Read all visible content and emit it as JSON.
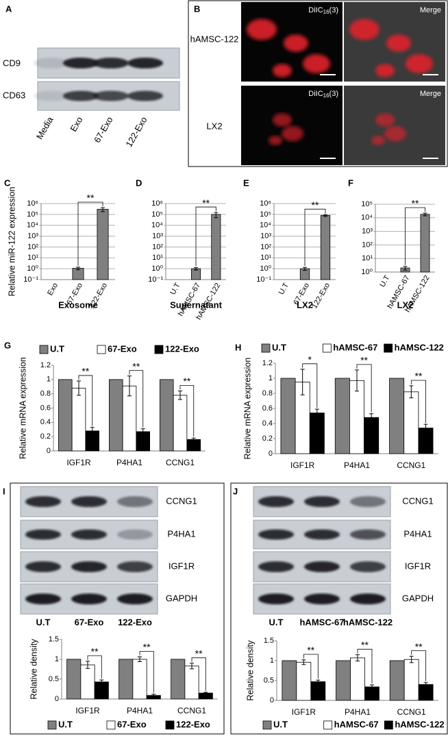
{
  "panel_labels": [
    "A",
    "B",
    "C",
    "D",
    "E",
    "F",
    "G",
    "H",
    "I",
    "J"
  ],
  "panel_a": {
    "rows": [
      "CD9",
      "CD63"
    ],
    "lanes": [
      "Media",
      "Exo",
      "67-Exo",
      "122-Exo"
    ]
  },
  "panel_b": {
    "rows": [
      "hAMSC-122",
      "LX2"
    ],
    "dye": {
      "text": "DiIC",
      "sub": "16",
      "tail": "(3)"
    },
    "merge": "Merge"
  },
  "panel_i": {
    "rows": [
      "CCNG1",
      "P4HA1",
      "IGF1R",
      "GAPDH"
    ],
    "lanes": [
      "U.T",
      "67-Exo",
      "122-Exo"
    ]
  },
  "panel_j": {
    "rows": [
      "CCNG1",
      "P4HA1",
      "IGF1R",
      "GAPDH"
    ],
    "lanes": [
      "U.T",
      "hAMSC-67",
      "hAMSC-122"
    ]
  },
  "chart_data": [
    {
      "type": "bar",
      "categories": [
        "Exo",
        "67-Exo",
        "122-Exo"
      ],
      "values": [
        0.1,
        1.1,
        300000
      ],
      "errors": [
        null,
        0.3,
        120000
      ],
      "color": "#808080",
      "log_y": true,
      "ylim": [
        0.1,
        1000000
      ],
      "yticks": [
        {
          "value": 0.1,
          "label": "10⁻¹"
        },
        {
          "value": 1,
          "label": "10⁰"
        },
        {
          "value": 10,
          "label": "10¹"
        },
        {
          "value": 100,
          "label": "10²"
        },
        {
          "value": 1000,
          "label": "10³"
        },
        {
          "value": 10000,
          "label": "10⁴"
        },
        {
          "value": 100000,
          "label": "10⁵"
        },
        {
          "value": 1000000,
          "label": "10⁶"
        }
      ],
      "grid": true,
      "y_label": "Relative miR-122 expression",
      "x_label": "Exosome",
      "annotations": [
        "**"
      ]
    },
    {
      "type": "bar",
      "categories": [
        "U.T",
        "hAMSC-67",
        "hAMSC-122"
      ],
      "values": [
        0.1,
        1,
        100000
      ],
      "errors": [
        null,
        0.25,
        50000
      ],
      "color": "#808080",
      "log_y": true,
      "ylim": [
        0.1,
        1000000
      ],
      "yticks": [
        {
          "value": 0.1,
          "label": "10⁻¹"
        },
        {
          "value": 1,
          "label": "10⁰"
        },
        {
          "value": 10,
          "label": "10¹"
        },
        {
          "value": 100,
          "label": "10²"
        },
        {
          "value": 1000,
          "label": "10³"
        },
        {
          "value": 10000,
          "label": "10⁴"
        },
        {
          "value": 100000,
          "label": "10⁵"
        },
        {
          "value": 1000000,
          "label": "10⁶"
        }
      ],
      "grid": true,
      "x_label": "Supernatant",
      "annotations": [
        "**"
      ]
    },
    {
      "type": "bar",
      "categories": [
        "U.T",
        "67-Exo",
        "122-Exo"
      ],
      "values": [
        0.1,
        1,
        80000
      ],
      "errors": [
        null,
        0.3,
        15000
      ],
      "color": "#808080",
      "log_y": true,
      "ylim": [
        0.1,
        1000000
      ],
      "yticks": [
        {
          "value": 0.1,
          "label": "10⁻¹"
        },
        {
          "value": 1,
          "label": "10⁰"
        },
        {
          "value": 10,
          "label": "10¹"
        },
        {
          "value": 100,
          "label": "10²"
        },
        {
          "value": 1000,
          "label": "10³"
        },
        {
          "value": 10000,
          "label": "10⁴"
        },
        {
          "value": 100000,
          "label": "10⁵"
        },
        {
          "value": 1000000,
          "label": "10⁶"
        }
      ],
      "grid": true,
      "x_label": "LX2",
      "annotations": [
        "**"
      ]
    },
    {
      "type": "bar",
      "categories": [
        "U.T",
        "hAMSC-67",
        "hAMSC-122"
      ],
      "values": [
        1,
        2,
        18000
      ],
      "errors": [
        null,
        0.6,
        4000
      ],
      "color": "#808080",
      "log_y": true,
      "ylim": [
        1,
        100000
      ],
      "yticks": [
        {
          "value": 1,
          "label": "10⁰"
        },
        {
          "value": 10,
          "label": "10¹"
        },
        {
          "value": 100,
          "label": "10²"
        },
        {
          "value": 1000,
          "label": "10³"
        },
        {
          "value": 10000,
          "label": "10⁴"
        },
        {
          "value": 100000,
          "label": "10⁵"
        }
      ],
      "grid": true,
      "x_label": "LX2",
      "annotations": [
        "**"
      ]
    },
    {
      "type": "bar",
      "categories": [
        "IGF1R",
        "P4HA1",
        "CCNG1"
      ],
      "series": [
        {
          "name": "U.T",
          "color": "#808080",
          "values": [
            1,
            1,
            1
          ],
          "errors": [
            null,
            null,
            null
          ]
        },
        {
          "name": "67-Exo",
          "color": "#ffffff",
          "values": [
            0.88,
            0.91,
            0.78
          ],
          "errors": [
            0.1,
            0.14,
            0.06
          ]
        },
        {
          "name": "122-Exo",
          "color": "#000000",
          "values": [
            0.28,
            0.27,
            0.16
          ],
          "errors": [
            0.05,
            0.04,
            0.02
          ]
        }
      ],
      "ylim": [
        0,
        1.2
      ],
      "yticks": [
        0,
        0.2,
        0.4,
        0.6,
        0.8,
        1,
        1.2
      ],
      "grid": false,
      "legend": "top",
      "y_label": "Relative mRNA expression",
      "annotations": [
        "**",
        "**",
        "**"
      ]
    },
    {
      "type": "bar",
      "categories": [
        "IGF1R",
        "P4HA1",
        "CCNG1"
      ],
      "series": [
        {
          "name": "U.T",
          "color": "#808080",
          "values": [
            1,
            1,
            1
          ],
          "errors": [
            null,
            null,
            null
          ]
        },
        {
          "name": "hAMSC-67",
          "color": "#ffffff",
          "values": [
            0.95,
            0.97,
            0.82
          ],
          "errors": [
            0.17,
            0.14,
            0.08
          ]
        },
        {
          "name": "hAMSC-122",
          "color": "#000000",
          "values": [
            0.54,
            0.48,
            0.34
          ],
          "errors": [
            0.05,
            0.05,
            0.05
          ]
        }
      ],
      "ylim": [
        0,
        1.2
      ],
      "yticks": [
        0,
        0.2,
        0.4,
        0.6,
        0.8,
        1,
        1.2
      ],
      "grid": false,
      "legend": "top",
      "y_label": "Relative mRNA expression",
      "annotations": [
        "*",
        "**",
        "**"
      ]
    },
    {
      "type": "bar",
      "categories": [
        "IGF1R",
        "P4HA1",
        "CCNG1"
      ],
      "series": [
        {
          "name": "U.T",
          "color": "#808080",
          "values": [
            1,
            1,
            1
          ],
          "errors": [
            null,
            null,
            null
          ]
        },
        {
          "name": "67-Exo",
          "color": "#ffffff",
          "values": [
            0.86,
            1,
            0.83
          ],
          "errors": [
            0.09,
            0.06,
            0.07
          ]
        },
        {
          "name": "122-Exo",
          "color": "#000000",
          "values": [
            0.43,
            0.09,
            0.15
          ],
          "errors": [
            0.05,
            0.03,
            0.02
          ]
        }
      ],
      "ylim": [
        0,
        1.5
      ],
      "yticks": [
        0,
        0.5,
        1,
        1.5
      ],
      "grid": false,
      "legend": "bottom",
      "y_label": "Relative density",
      "annotations": [
        "**",
        "**",
        "**"
      ]
    },
    {
      "type": "bar",
      "categories": [
        "IGF1R",
        "P4HA1",
        "CCNG1"
      ],
      "series": [
        {
          "name": "U.T",
          "color": "#808080",
          "values": [
            1,
            1,
            1
          ],
          "errors": [
            null,
            null,
            null
          ]
        },
        {
          "name": "hAMSC-67",
          "color": "#ffffff",
          "values": [
            0.96,
            1.07,
            1.03
          ],
          "errors": [
            0.06,
            0.08,
            0.08
          ]
        },
        {
          "name": "hAMSC-122",
          "color": "#000000",
          "values": [
            0.47,
            0.34,
            0.4
          ],
          "errors": [
            0.04,
            0.05,
            0.05
          ]
        }
      ],
      "ylim": [
        0,
        1.5
      ],
      "yticks": [
        0,
        0.5,
        1,
        1.5
      ],
      "grid": false,
      "legend": "bottom",
      "y_label": "Relative density",
      "annotations": [
        "**",
        "**",
        "**"
      ]
    }
  ]
}
